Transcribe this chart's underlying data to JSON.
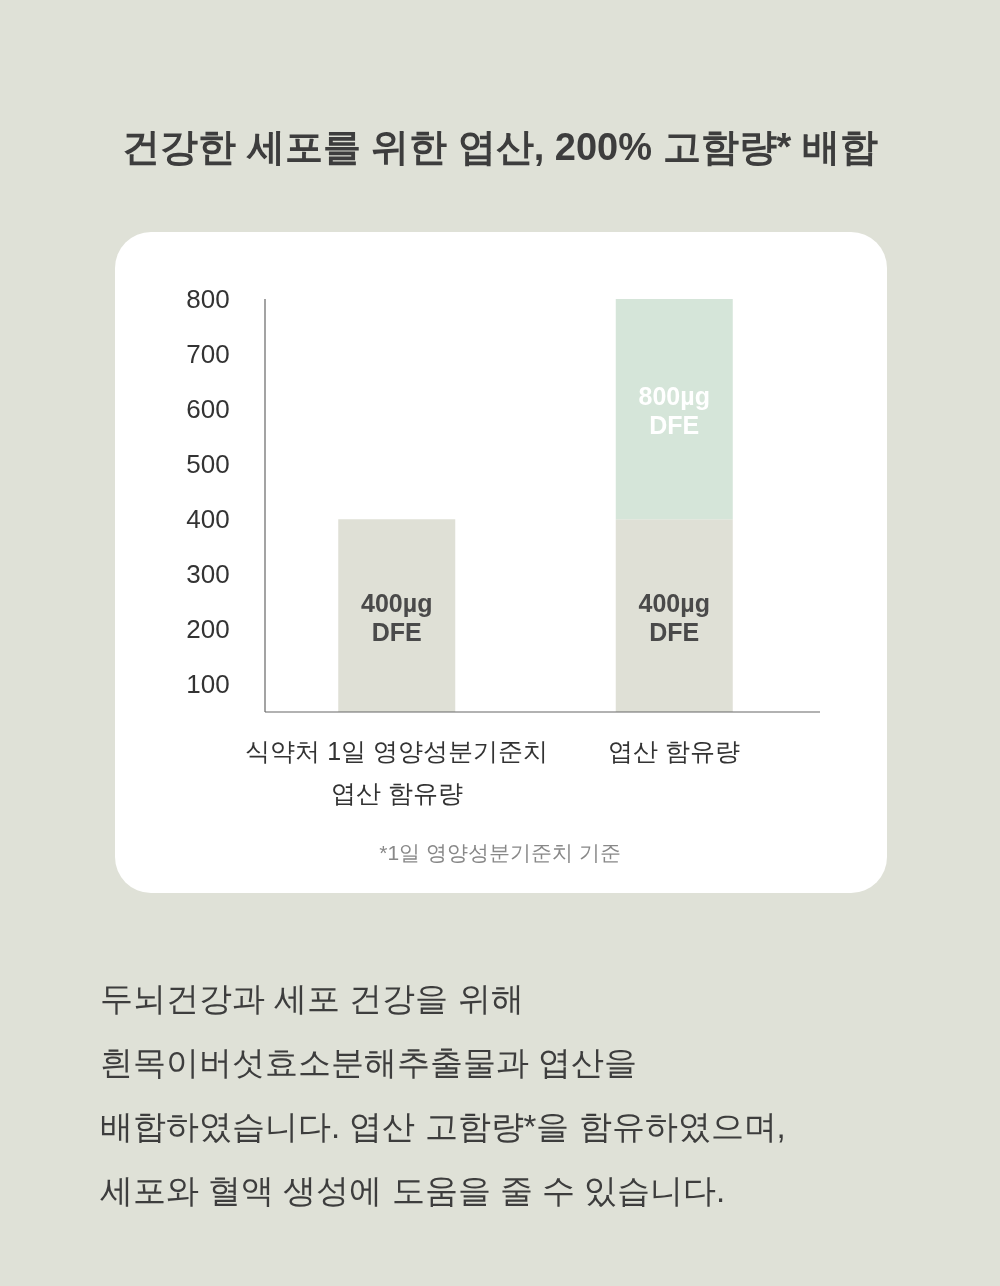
{
  "chart_data": {
    "type": "bar",
    "stacked": true,
    "title": "건강한 세포를 위한 엽산, 200% 고함량* 배합",
    "categories": [
      "식약처 1일 영양성분기준치\n엽산 함유량",
      "엽산 함유량"
    ],
    "series": [
      {
        "color": "#dfe0d6",
        "values": [
          400,
          400
        ],
        "value_labels": [
          "400µg\nDFE",
          "400µg\nDFE"
        ]
      },
      {
        "color": "#d5e5d9",
        "values": [
          null,
          400
        ]
      }
    ],
    "totals": [
      null,
      "800µg\nDFE"
    ],
    "ylim": [
      50,
      800
    ],
    "yticks": [
      100,
      200,
      300,
      400,
      500,
      600,
      700,
      800
    ],
    "annotations": [
      "*1일 영양성분기준치 기준",
      "두뇌건강과 세포 건강을 위해\n흰목이버섯효소분해추출물과 엽산을\n배합하였습니다. 엽산 고함량*을 함유하였으며,\n세포와 혈액 생성에 도움을 줄 수 있습니다."
    ]
  }
}
